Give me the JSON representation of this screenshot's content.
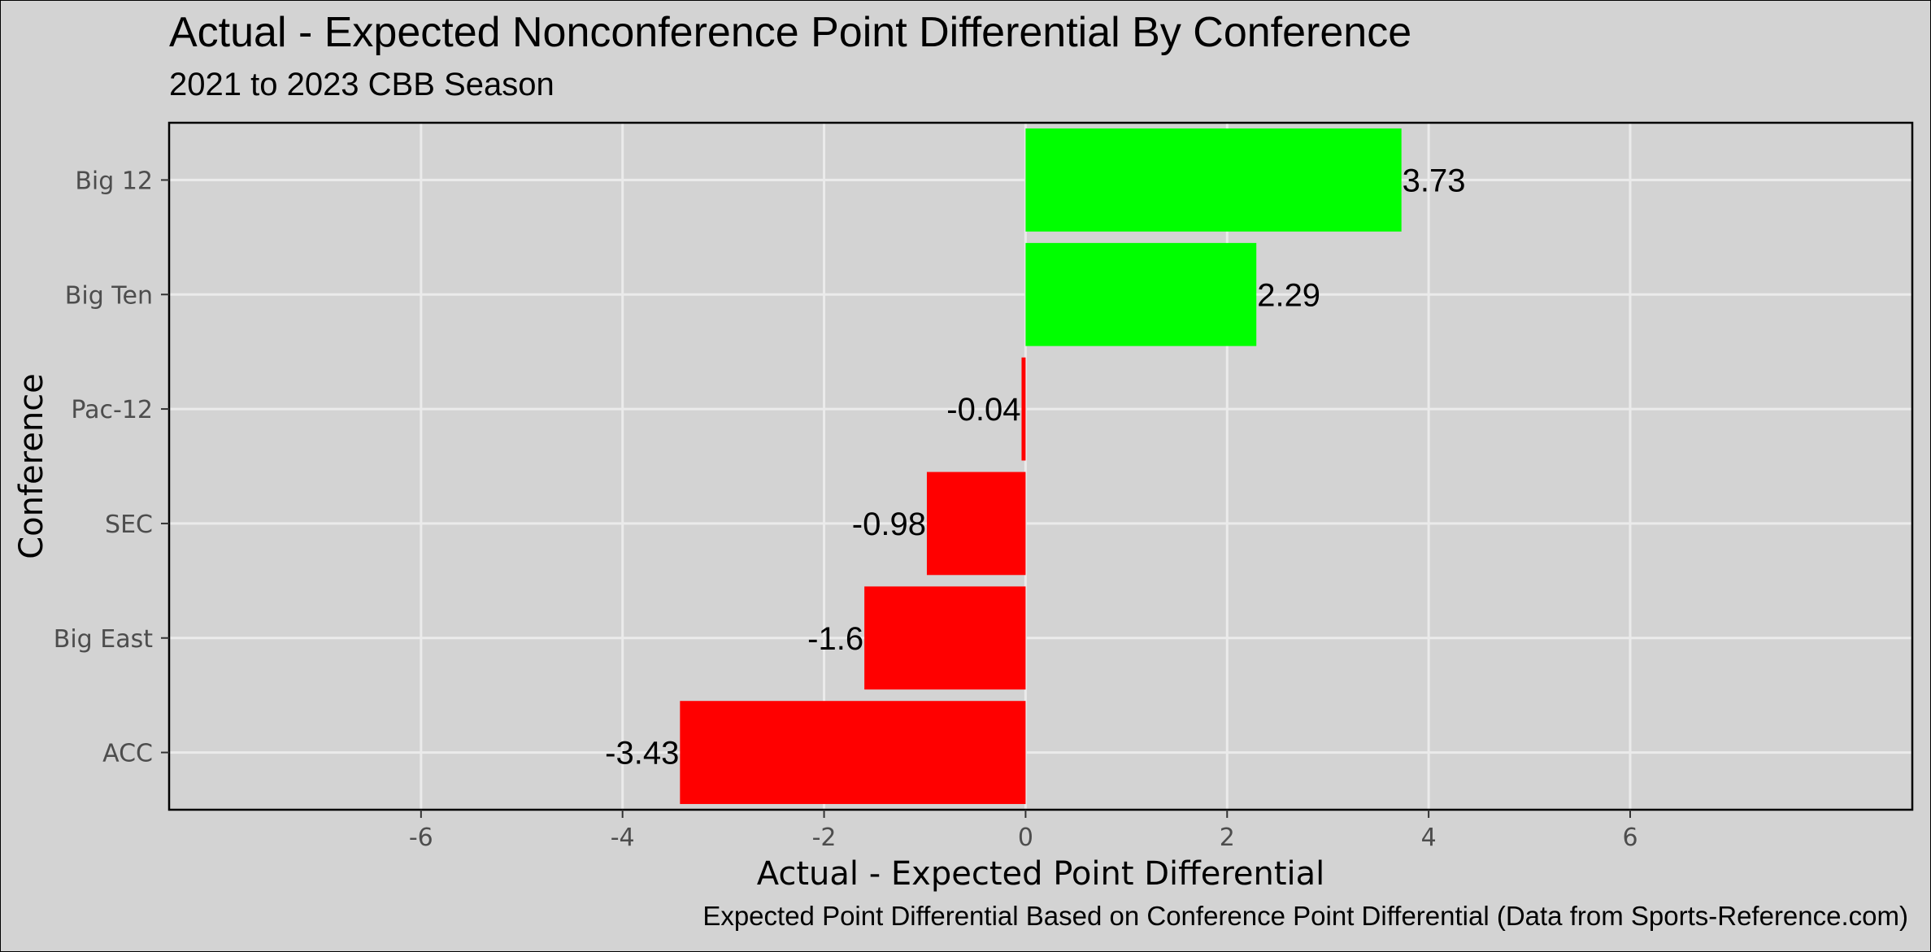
{
  "chart_data": {
    "type": "bar",
    "orientation": "horizontal",
    "title": "Actual - Expected Nonconference Point Differential By Conference",
    "subtitle": "2021 to 2023 CBB Season",
    "caption": "Expected Point Differential Based on Conference Point Differential (Data from Sports-Reference.com)",
    "xlabel": "Actual - Expected Point Differential",
    "ylabel": "Conference",
    "categories": [
      "Big 12",
      "Big Ten",
      "Pac-12",
      "SEC",
      "Big East",
      "ACC"
    ],
    "values": [
      3.73,
      2.29,
      -0.04,
      -0.98,
      -1.6,
      -3.43
    ],
    "data_labels": [
      "3.73",
      "2.29",
      "-0.04",
      "-0.98",
      "-1.6",
      "-3.43"
    ],
    "x_ticks": [
      -6,
      -4,
      -2,
      0,
      2,
      4,
      6
    ],
    "x_tick_labels": [
      "-6",
      "-4",
      "-2",
      "0",
      "2",
      "4",
      "6"
    ],
    "xlim": [
      -8.5,
      8.8
    ],
    "grid": true,
    "legend": "none",
    "colors": {
      "positive": "#00ff00",
      "negative": "#ff0000",
      "background": "#d3d3d3",
      "gridline": "#ebebeb",
      "panel_border": "#000000"
    }
  }
}
